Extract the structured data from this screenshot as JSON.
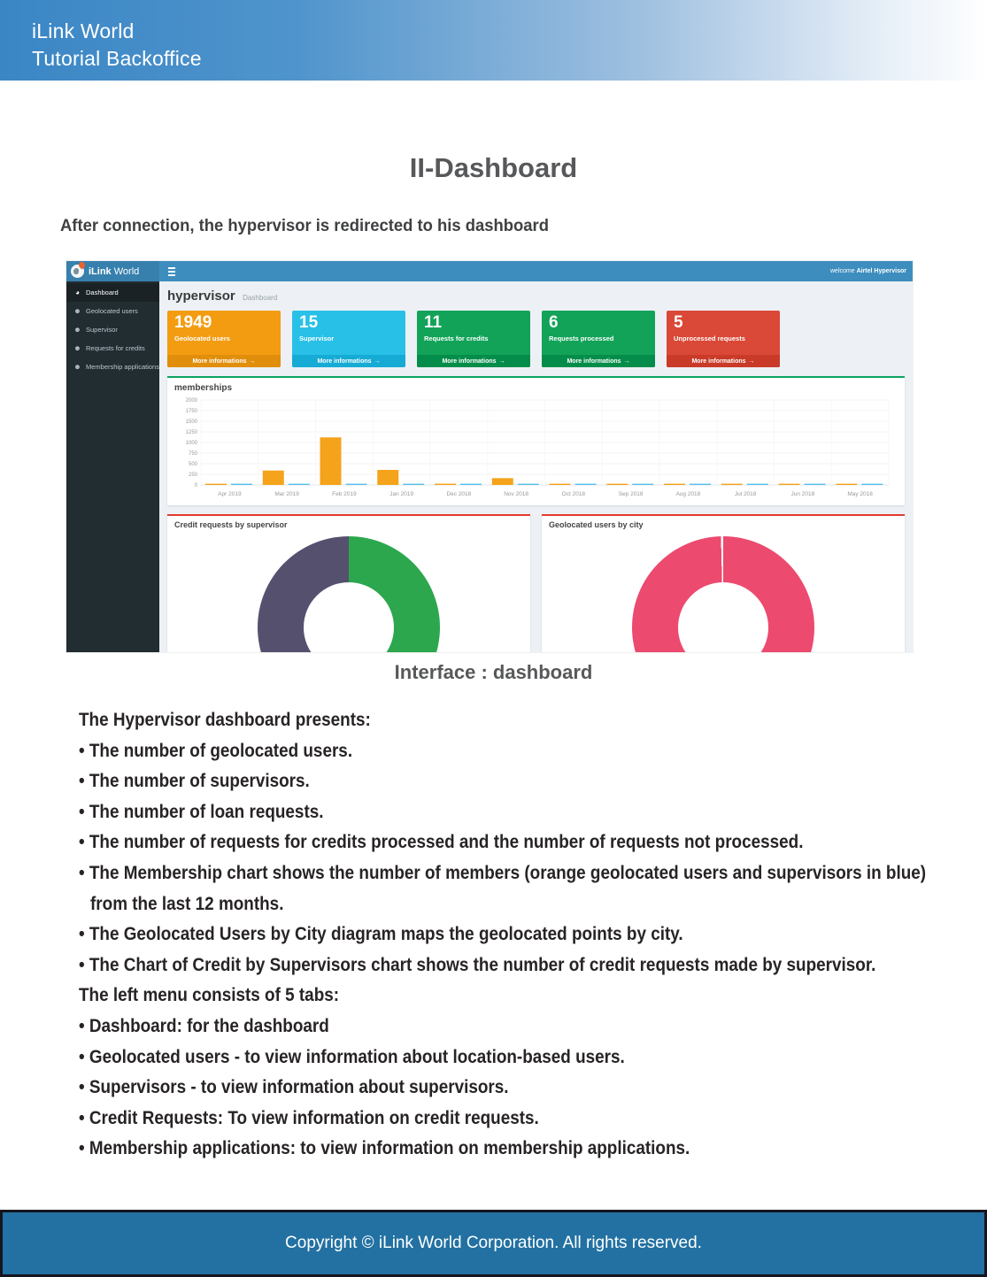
{
  "page": {
    "header": {
      "line1": "iLink World",
      "line2": "Tutorial Backoffice"
    },
    "title": "II-Dashboard",
    "subtitle": "After connection, the hypervisor is redirected to his dashboard",
    "caption": "Interface : dashboard",
    "body_lines": [
      {
        "text": "The Hypervisor dashboard presents:",
        "indent": false
      },
      {
        "text": "• The number of geolocated users.",
        "indent": false
      },
      {
        "text": "• The number of supervisors.",
        "indent": false
      },
      {
        "text": "• The number of loan requests.",
        "indent": false
      },
      {
        "text": "• The number of requests for credits processed and the number of requests not processed.",
        "indent": false
      },
      {
        "text": "• The Membership chart shows the number of members (orange geolocated users and supervisors in blue)",
        "indent": false
      },
      {
        "text": "from the last 12 months.",
        "indent": true
      },
      {
        "text": "• The Geolocated Users by City diagram maps the geolocated points by city.",
        "indent": false
      },
      {
        "text": "• The Chart of Credit by Supervisors chart shows the number of credit requests made by supervisor.",
        "indent": false
      },
      {
        "text": "The left menu consists of 5 tabs:",
        "indent": false
      },
      {
        "text": "• Dashboard: for the dashboard",
        "indent": false
      },
      {
        "text": "• Geolocated users - to view information about location-based users.",
        "indent": false
      },
      {
        "text": "• Supervisors - to view information about supervisors.",
        "indent": false
      },
      {
        "text": "• Credit Requests: To view information on credit requests.",
        "indent": false
      },
      {
        "text": "• Membership applications: to view information on membership applications.",
        "indent": false
      }
    ],
    "footer_text": "Copyright © iLink World Corporation. All rights reserved."
  },
  "dashboard": {
    "navbar": {
      "brand_bold": "iLink",
      "brand_regular": "World",
      "welcome_prefix": "welcome",
      "welcome_user": "Airtel Hypervisor"
    },
    "sidebar": {
      "items": [
        {
          "label": "Dashboard",
          "icon": "dashboard-icon",
          "glyph": "◕",
          "active": true
        },
        {
          "label": "Geolocated users",
          "icon": "users-icon",
          "glyph": "☻",
          "active": false
        },
        {
          "label": "Supervisor",
          "icon": "users-icon",
          "glyph": "☻",
          "active": false
        },
        {
          "label": "Requests for credits",
          "icon": "users-icon",
          "glyph": "☻",
          "active": false
        },
        {
          "label": "Membership applications",
          "icon": "users-icon",
          "glyph": "☻",
          "active": false
        }
      ]
    },
    "breadcrumb": {
      "title": "hypervisor",
      "section": "Dashboard"
    },
    "cards": [
      {
        "value": "1949",
        "label": "Geolocated users",
        "link": "More informations",
        "bg": "#f39c12",
        "footer_bg": "#e08e0b"
      },
      {
        "value": "15",
        "label": "Supervisor",
        "link": "More informations",
        "bg": "#29c0e7",
        "footer_bg": "#16abd4"
      },
      {
        "value": "11",
        "label": "Requests for credits",
        "link": "More informations",
        "bg": "#12a359",
        "footer_bg": "#048d4a"
      },
      {
        "value": "6",
        "label": "Requests processed",
        "link": "More informations",
        "bg": "#12a359",
        "footer_bg": "#048d4a"
      },
      {
        "value": "5",
        "label": "Unprocessed requests",
        "link": "More informations",
        "bg": "#da4837",
        "footer_bg": "#c93a28"
      }
    ]
  },
  "icons": {
    "arrow_circle_right": "→"
  },
  "chart_data": [
    {
      "type": "bar",
      "title": "memberships",
      "categories": [
        "Apr 2019",
        "Mar 2019",
        "Feb 2019",
        "Jan 2019",
        "Dec 2018",
        "Nov 2018",
        "Oct 2018",
        "Sep 2018",
        "Aug 2018",
        "Jul 2018",
        "Jun 2018",
        "May 2018"
      ],
      "series": [
        {
          "name": "geolocated users",
          "color": "#f5a31a",
          "values": [
            25,
            340,
            1120,
            355,
            30,
            160,
            15,
            15,
            15,
            15,
            15,
            15
          ]
        },
        {
          "name": "supervisors",
          "color": "#55c0ee",
          "values": [
            10,
            10,
            10,
            20,
            10,
            10,
            12,
            12,
            12,
            12,
            12,
            12
          ]
        }
      ],
      "ylim": [
        0,
        2000
      ],
      "yticks": [
        0,
        250,
        500,
        750,
        1000,
        1250,
        1500,
        1750,
        2000
      ],
      "grid": true,
      "legend": "none"
    },
    {
      "type": "pie",
      "donut": true,
      "title": "Credit requests by supervisor",
      "slices": [
        {
          "color": "#2ca74e",
          "percent": 50
        },
        {
          "color": "#1d2b50",
          "percent": 2
        },
        {
          "color": "#56506f",
          "percent": 48
        }
      ]
    },
    {
      "type": "pie",
      "donut": true,
      "title": "Geolocated users by city",
      "slices": [
        {
          "color": "#ec4a6e",
          "percent": 99.6
        },
        {
          "color": "#ffffff",
          "percent": 0.4
        }
      ]
    }
  ]
}
